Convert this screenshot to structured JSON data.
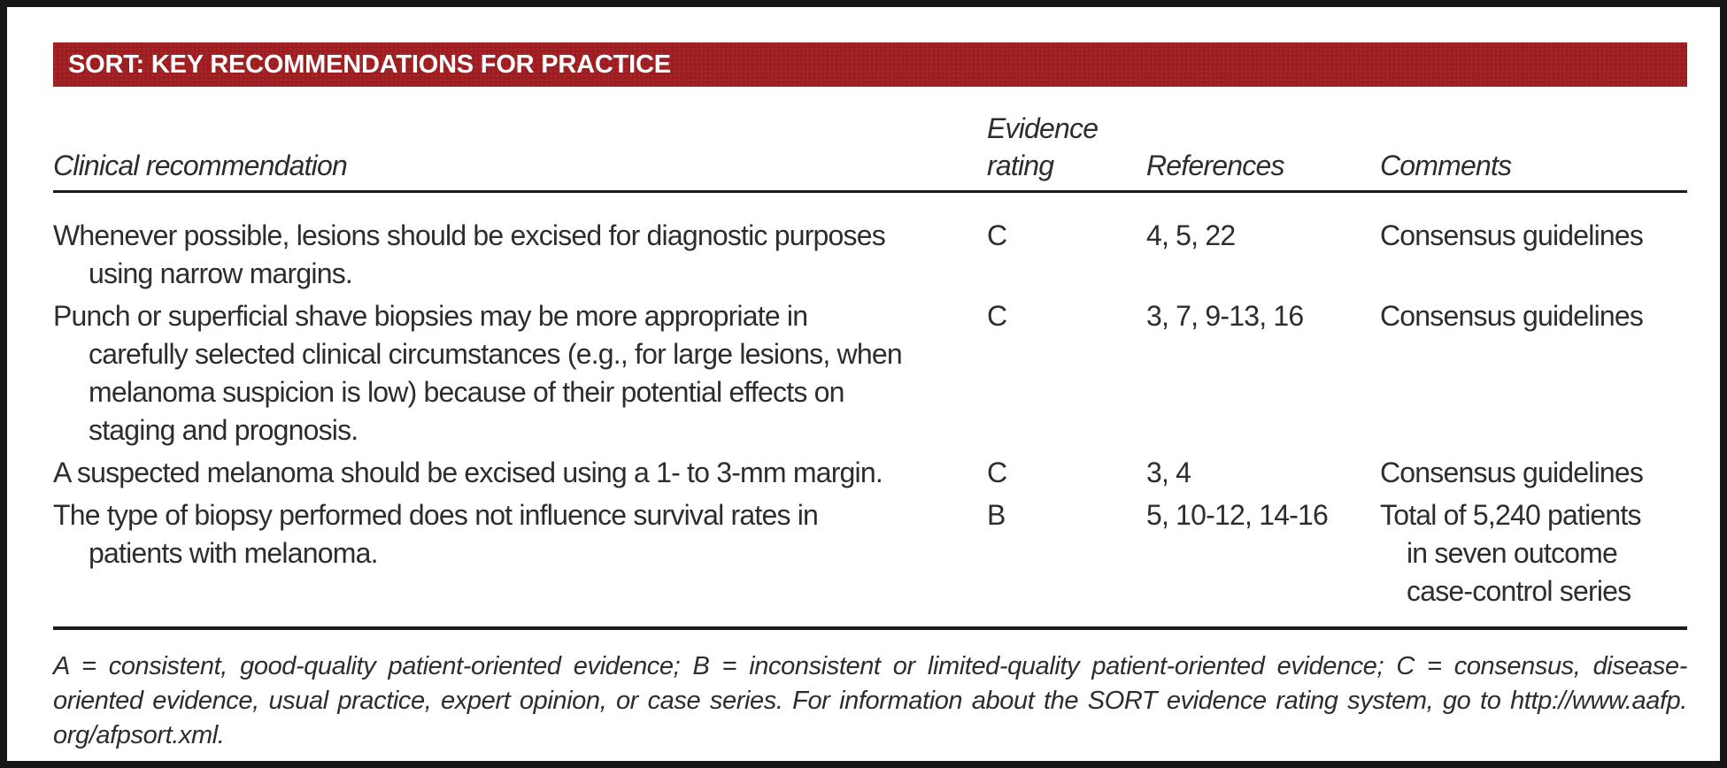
{
  "colors": {
    "header_bar": "#9d1d21",
    "frame_border": "#161616",
    "text": "#2d2d2d"
  },
  "header": {
    "title": "SORT: KEY RECOMMENDATIONS FOR PRACTICE"
  },
  "table": {
    "columns": {
      "clinical": "Clinical recommendation",
      "evidence_line1": "Evidence",
      "evidence_line2": "rating",
      "references": "References",
      "comments": "Comments"
    },
    "rows": [
      {
        "recommendation_lines": [
          "Whenever possible, lesions should be excised for diagnostic purposes",
          "using narrow margins."
        ],
        "evidence": "C",
        "references": "4, 5, 22",
        "comment_lines": [
          "Consensus guidelines"
        ]
      },
      {
        "recommendation_lines": [
          "Punch or superficial shave biopsies may be more appropriate in",
          "carefully selected clinical circumstances (e.g., for large lesions, when",
          "melanoma suspicion is low) because of their potential effects on",
          "staging and prognosis."
        ],
        "evidence": "C",
        "references": "3, 7, 9-13, 16",
        "comment_lines": [
          "Consensus guidelines"
        ]
      },
      {
        "recommendation_lines": [
          "A suspected melanoma should be excised using a 1- to 3-mm margin."
        ],
        "evidence": "C",
        "references": "3, 4",
        "comment_lines": [
          "Consensus guidelines"
        ]
      },
      {
        "recommendation_lines": [
          "The type of biopsy performed does not influence survival rates in",
          "patients with melanoma."
        ],
        "evidence": "B",
        "references": "5, 10-12, 14-16",
        "comment_lines": [
          "Total of 5,240 patients",
          "in seven outcome",
          "case-control series"
        ]
      }
    ]
  },
  "footnote": {
    "lines": [
      "A = consistent, good-quality patient-oriented evidence; B = inconsistent or limited-quality patient-oriented evidence; C = consensus, disease-",
      "oriented evidence, usual practice, expert opinion, or case series. For information about the SORT evidence rating system, go to http://www.aafp.",
      "org/afpsort.xml."
    ]
  }
}
